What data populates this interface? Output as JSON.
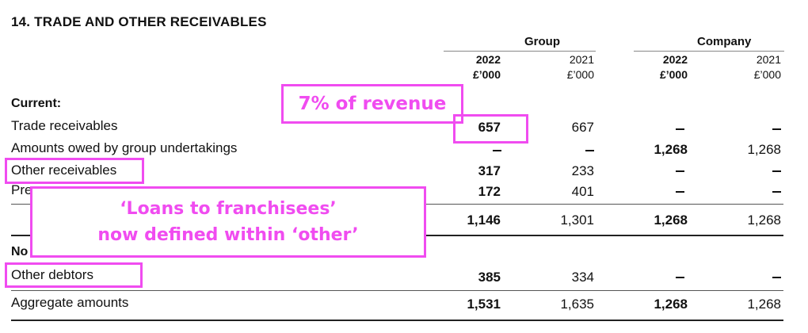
{
  "title": "14.  TRADE AND OTHER RECEIVABLES",
  "headers": {
    "group": "Group",
    "company": "Company",
    "year_2022": "2022",
    "year_2021": "2021",
    "unit": "£’000"
  },
  "rows": {
    "current_heading": "Current:",
    "trade_receivables": {
      "label": "Trade receivables",
      "g2022": "657",
      "g2021": "667",
      "c2022": "–",
      "c2021": "–"
    },
    "group_undertakings": {
      "label": "Amounts owed by group undertakings",
      "g2022": "–",
      "g2021": "–",
      "c2022": "1,268",
      "c2021": "1,268"
    },
    "other_receivables": {
      "label": "Other receivables",
      "g2022": "317",
      "g2021": "233",
      "c2022": "–",
      "c2021": "–"
    },
    "prepayments": {
      "label": "Pre",
      "g2022": "172",
      "g2021": "401",
      "c2022": "–",
      "c2021": "–"
    },
    "current_total": {
      "g2022": "1,146",
      "g2021": "1,301",
      "c2022": "1,268",
      "c2021": "1,268"
    },
    "noncurrent_heading": "No",
    "other_debtors": {
      "label": "Other debtors",
      "g2022": "385",
      "g2021": "334",
      "c2022": "–",
      "c2021": "–"
    },
    "aggregate": {
      "label": "Aggregate amounts",
      "g2022": "1,531",
      "g2021": "1,635",
      "c2022": "1,268",
      "c2021": "1,268"
    }
  },
  "annotations": {
    "revenue_note": "7% of revenue",
    "loans_note_line1": "‘Loans to franchisees’",
    "loans_note_line2": "now defined within ‘other’",
    "accent_color": "#f04cf0"
  }
}
